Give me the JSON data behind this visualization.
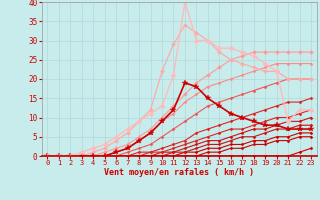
{
  "title": "",
  "xlabel": "Vent moyen/en rafales ( km/h )",
  "ylabel": "",
  "bg_color": "#c8ecec",
  "grid_color": "#b0d8d8",
  "xlim": [
    -0.5,
    23.5
  ],
  "ylim": [
    0,
    40
  ],
  "yticks": [
    0,
    5,
    10,
    15,
    20,
    25,
    30,
    35,
    40
  ],
  "xticks": [
    0,
    1,
    2,
    3,
    4,
    5,
    6,
    7,
    8,
    9,
    10,
    11,
    12,
    13,
    14,
    15,
    16,
    17,
    18,
    19,
    20,
    21,
    22,
    23
  ],
  "series": [
    {
      "x": [
        0,
        1,
        2,
        3,
        4,
        5,
        6,
        7,
        8,
        9,
        10,
        11,
        12,
        13,
        14,
        15,
        16,
        17,
        18,
        19,
        20,
        21,
        22,
        23
      ],
      "y": [
        0,
        0,
        0,
        0,
        0,
        0,
        0,
        0,
        0,
        0,
        0,
        0,
        0,
        0,
        0,
        0,
        0,
        0,
        0,
        0,
        0,
        0,
        1,
        2
      ],
      "color": "#cc0000",
      "lw": 0.8,
      "marker": "D",
      "ms": 1.5
    },
    {
      "x": [
        0,
        1,
        2,
        3,
        4,
        5,
        6,
        7,
        8,
        9,
        10,
        11,
        12,
        13,
        14,
        15,
        16,
        17,
        18,
        19,
        20,
        21,
        22,
        23
      ],
      "y": [
        0,
        0,
        0,
        0,
        0,
        0,
        0,
        0,
        0,
        0,
        0,
        0,
        0,
        0,
        1,
        1,
        2,
        2,
        3,
        3,
        4,
        4,
        5,
        5
      ],
      "color": "#cc0000",
      "lw": 0.8,
      "marker": "D",
      "ms": 1.5
    },
    {
      "x": [
        0,
        1,
        2,
        3,
        4,
        5,
        6,
        7,
        8,
        9,
        10,
        11,
        12,
        13,
        14,
        15,
        16,
        17,
        18,
        19,
        20,
        21,
        22,
        23
      ],
      "y": [
        0,
        0,
        0,
        0,
        0,
        0,
        0,
        0,
        0,
        0,
        0,
        0,
        1,
        1,
        2,
        2,
        3,
        3,
        4,
        4,
        5,
        5,
        6,
        6
      ],
      "color": "#cc0000",
      "lw": 0.8,
      "marker": "D",
      "ms": 1.5
    },
    {
      "x": [
        0,
        1,
        2,
        3,
        4,
        5,
        6,
        7,
        8,
        9,
        10,
        11,
        12,
        13,
        14,
        15,
        16,
        17,
        18,
        19,
        20,
        21,
        22,
        23
      ],
      "y": [
        0,
        0,
        0,
        0,
        0,
        0,
        0,
        0,
        0,
        0,
        0,
        1,
        1,
        2,
        3,
        3,
        4,
        5,
        5,
        6,
        7,
        7,
        8,
        8
      ],
      "color": "#cc1111",
      "lw": 0.8,
      "marker": "D",
      "ms": 1.5
    },
    {
      "x": [
        0,
        1,
        2,
        3,
        4,
        5,
        6,
        7,
        8,
        9,
        10,
        11,
        12,
        13,
        14,
        15,
        16,
        17,
        18,
        19,
        20,
        21,
        22,
        23
      ],
      "y": [
        0,
        0,
        0,
        0,
        0,
        0,
        0,
        0,
        0,
        0,
        1,
        1,
        2,
        3,
        4,
        4,
        5,
        6,
        7,
        7,
        8,
        9,
        9,
        10
      ],
      "color": "#cc1111",
      "lw": 0.8,
      "marker": "D",
      "ms": 1.5
    },
    {
      "x": [
        0,
        1,
        2,
        3,
        4,
        5,
        6,
        7,
        8,
        9,
        10,
        11,
        12,
        13,
        14,
        15,
        16,
        17,
        18,
        19,
        20,
        21,
        22,
        23
      ],
      "y": [
        0,
        0,
        0,
        0,
        0,
        0,
        0,
        0,
        0,
        1,
        1,
        2,
        3,
        4,
        5,
        6,
        7,
        7,
        8,
        9,
        10,
        10,
        11,
        12
      ],
      "color": "#dd2222",
      "lw": 0.8,
      "marker": "D",
      "ms": 1.5
    },
    {
      "x": [
        0,
        1,
        2,
        3,
        4,
        5,
        6,
        7,
        8,
        9,
        10,
        11,
        12,
        13,
        14,
        15,
        16,
        17,
        18,
        19,
        20,
        21,
        22,
        23
      ],
      "y": [
        0,
        0,
        0,
        0,
        0,
        0,
        0,
        0,
        1,
        1,
        2,
        3,
        4,
        6,
        7,
        8,
        9,
        10,
        11,
        12,
        13,
        14,
        14,
        15
      ],
      "color": "#dd2222",
      "lw": 0.8,
      "marker": "D",
      "ms": 1.5
    },
    {
      "x": [
        0,
        1,
        2,
        3,
        4,
        5,
        6,
        7,
        8,
        9,
        10,
        11,
        12,
        13,
        14,
        15,
        16,
        17,
        18,
        19,
        20,
        21,
        22,
        23
      ],
      "y": [
        0,
        0,
        0,
        0,
        0,
        0,
        0,
        1,
        2,
        3,
        5,
        7,
        9,
        11,
        13,
        14,
        15,
        16,
        17,
        18,
        19,
        20,
        20,
        20
      ],
      "color": "#ee5555",
      "lw": 0.8,
      "marker": "D",
      "ms": 1.5
    },
    {
      "x": [
        0,
        1,
        2,
        3,
        4,
        5,
        6,
        7,
        8,
        9,
        10,
        11,
        12,
        13,
        14,
        15,
        16,
        17,
        18,
        19,
        20,
        21,
        22,
        23
      ],
      "y": [
        0,
        0,
        0,
        0,
        0,
        0,
        1,
        2,
        4,
        6,
        9,
        11,
        14,
        16,
        18,
        19,
        20,
        21,
        22,
        23,
        24,
        24,
        24,
        24
      ],
      "color": "#ff8888",
      "lw": 0.8,
      "marker": "D",
      "ms": 1.5
    },
    {
      "x": [
        0,
        1,
        2,
        3,
        4,
        5,
        6,
        7,
        8,
        9,
        10,
        11,
        12,
        13,
        14,
        15,
        16,
        17,
        18,
        19,
        20,
        21,
        22,
        23
      ],
      "y": [
        0,
        0,
        0,
        0,
        0,
        1,
        2,
        3,
        5,
        7,
        10,
        13,
        16,
        19,
        21,
        23,
        25,
        26,
        27,
        27,
        27,
        27,
        27,
        27
      ],
      "color": "#ff9999",
      "lw": 0.8,
      "marker": "D",
      "ms": 2.0
    },
    {
      "x": [
        0,
        1,
        2,
        3,
        4,
        5,
        6,
        7,
        8,
        9,
        10,
        11,
        12,
        13,
        14,
        15,
        16,
        17,
        18,
        19,
        20,
        21,
        22,
        23
      ],
      "y": [
        0,
        0,
        0,
        0,
        1,
        2,
        4,
        6,
        9,
        12,
        22,
        29,
        34,
        32,
        30,
        27,
        25,
        24,
        23,
        22,
        22,
        20,
        20,
        20
      ],
      "color": "#ffaaaa",
      "lw": 0.9,
      "marker": "D",
      "ms": 2.0
    },
    {
      "x": [
        0,
        1,
        2,
        3,
        4,
        5,
        6,
        7,
        8,
        9,
        10,
        11,
        12,
        13,
        14,
        15,
        16,
        17,
        18,
        19,
        20,
        21,
        22,
        23
      ],
      "y": [
        0,
        0,
        0,
        0,
        0,
        0,
        1,
        2,
        4,
        6,
        9,
        12,
        19,
        18,
        15,
        13,
        11,
        10,
        9,
        8,
        8,
        7,
        7,
        7
      ],
      "color": "#cc0000",
      "lw": 1.2,
      "marker": "*",
      "ms": 4.0
    },
    {
      "x": [
        0,
        1,
        2,
        3,
        4,
        5,
        6,
        7,
        8,
        9,
        10,
        11,
        12,
        13,
        14,
        15,
        16,
        17,
        18,
        19,
        20,
        21,
        22,
        23
      ],
      "y": [
        0,
        0,
        0,
        1,
        2,
        3,
        5,
        7,
        9,
        11,
        13,
        21,
        40,
        30,
        30,
        28,
        28,
        27,
        26,
        24,
        22,
        9,
        12,
        12
      ],
      "color": "#ffbbbb",
      "lw": 1.0,
      "marker": "D",
      "ms": 2.5
    }
  ]
}
